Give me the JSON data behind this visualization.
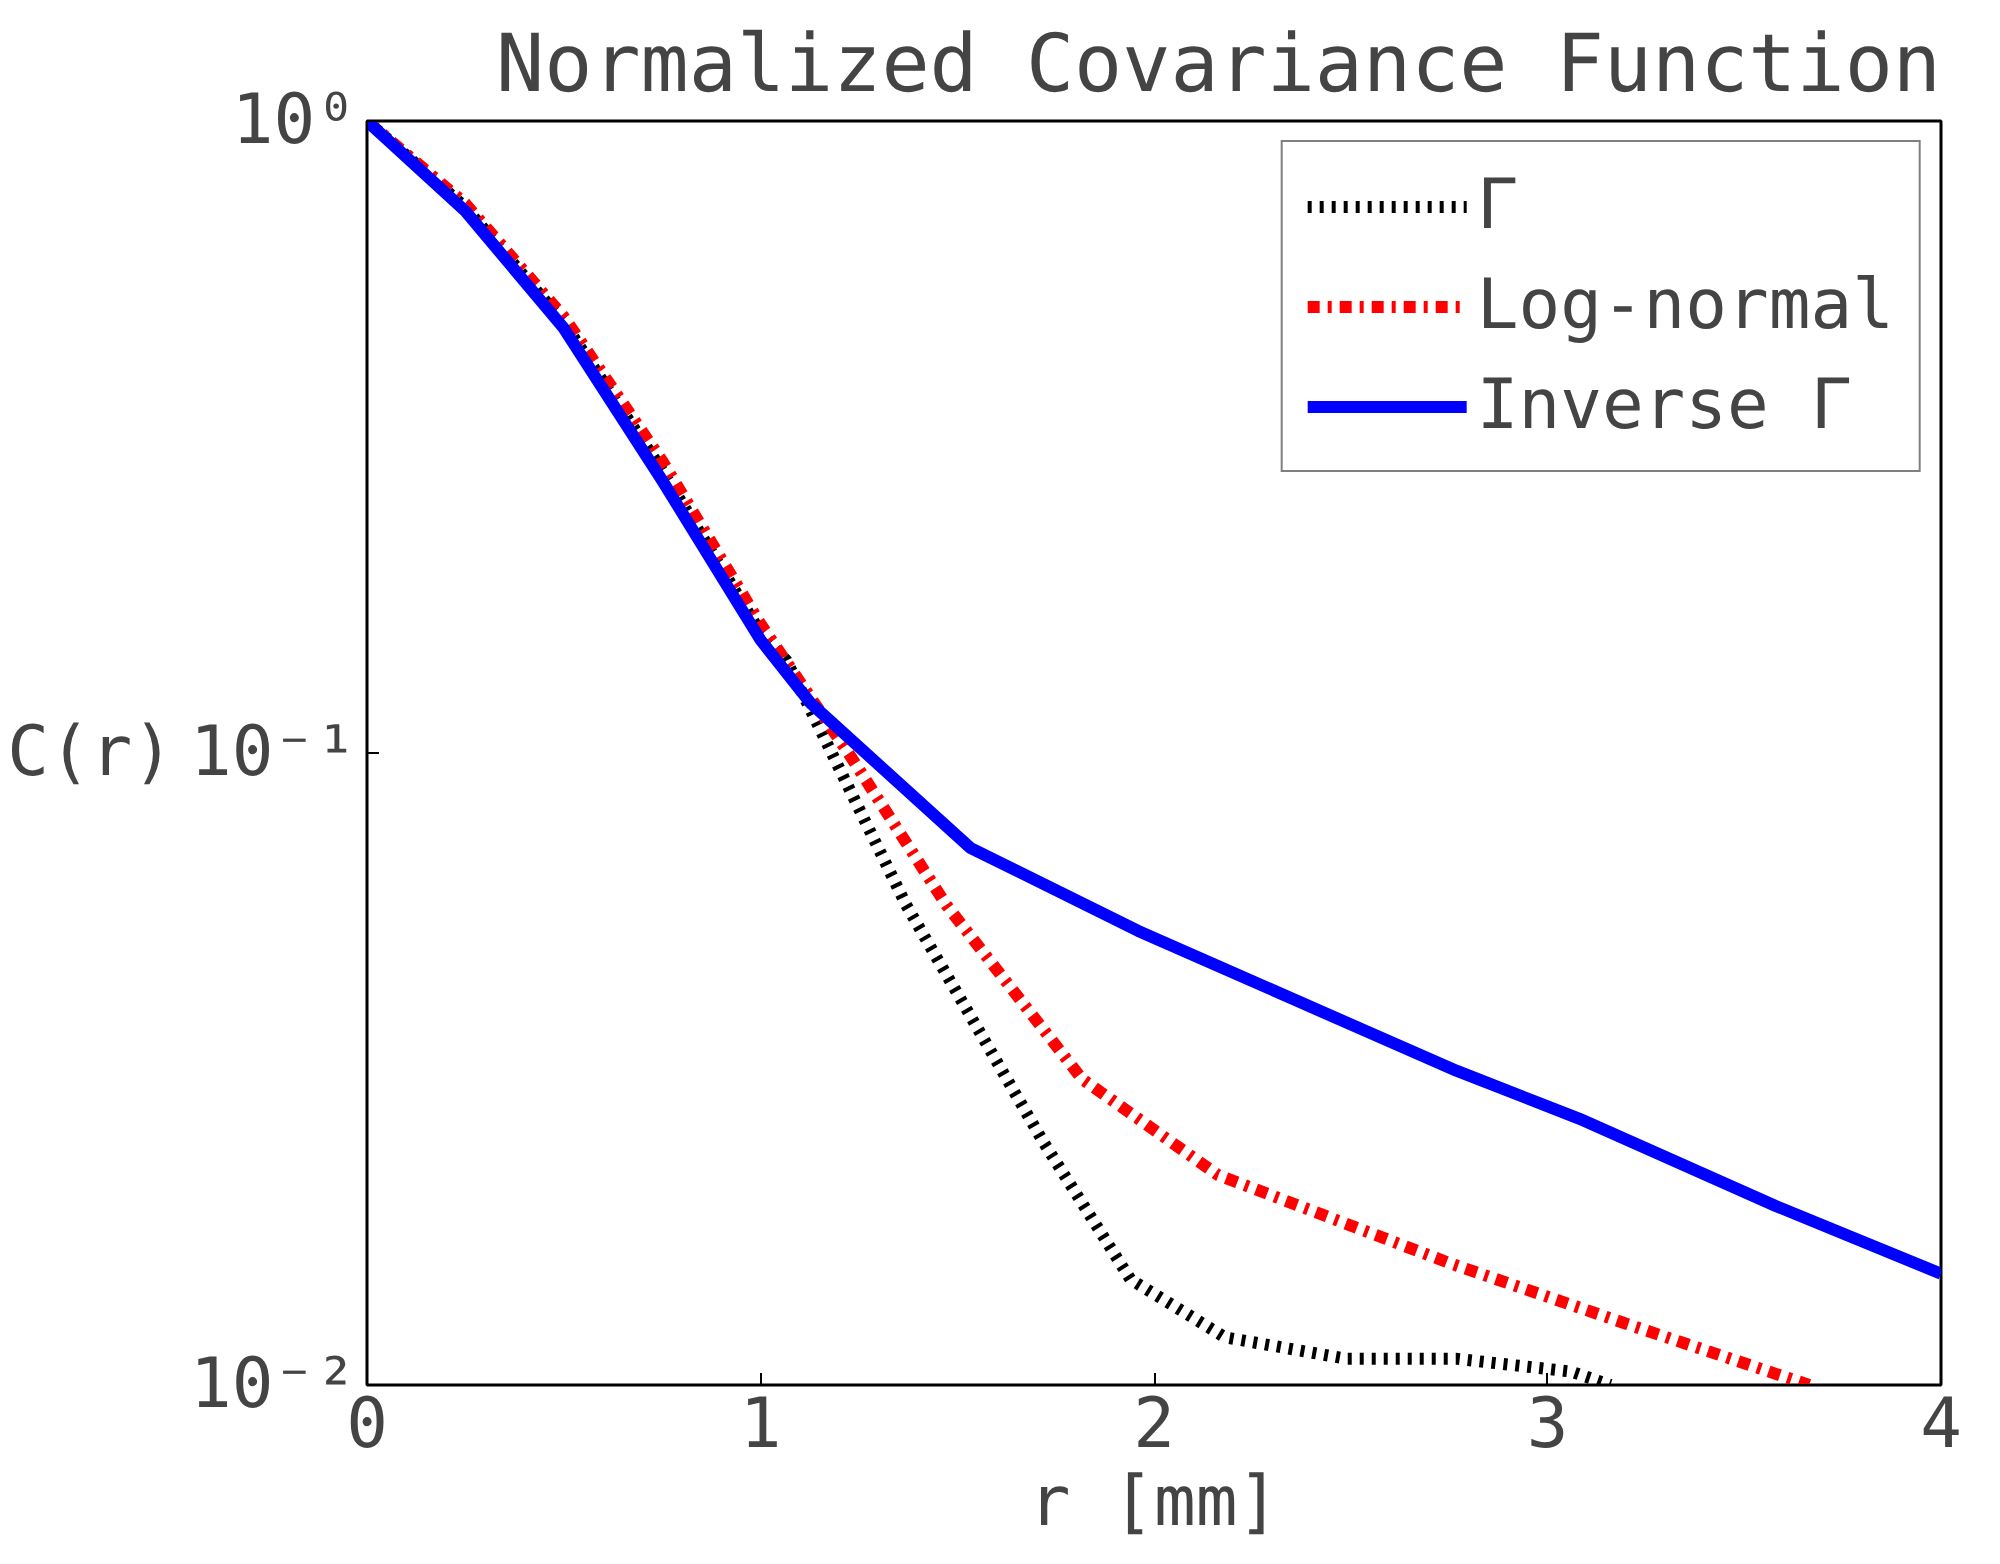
{
  "chart_data": {
    "type": "line",
    "title": "Normalized Covariance Function",
    "xlabel": "r [mm]",
    "ylabel": "C(r)",
    "log": "y",
    "xlim": [
      0,
      4
    ],
    "ylim": [
      0.01,
      1
    ],
    "xticks": [
      0,
      1,
      2,
      3,
      4
    ],
    "yticks": [
      {
        "value": 1,
        "label": "10⁰"
      },
      {
        "value": 0.1,
        "label": "10⁻¹"
      },
      {
        "value": 0.01,
        "label": "10⁻²"
      }
    ],
    "grid": false,
    "legend": "top right",
    "series": [
      {
        "name": "Γ",
        "color": "#000000",
        "line_style": "dotted",
        "x": [
          0,
          0.25,
          0.5,
          0.75,
          1.0,
          1.066,
          1.37,
          1.716,
          1.94,
          2.18,
          2.49,
          2.77,
          3.06,
          3.16
        ],
        "values": [
          1,
          0.73,
          0.48,
          0.28,
          0.155,
          0.14,
          0.0575,
          0.0244,
          0.0147,
          0.0119,
          0.011,
          0.011,
          0.0105,
          0.01
        ]
      },
      {
        "name": "Log-normal",
        "color": "#ff0000",
        "line_style": "dashdot",
        "x": [
          0,
          0.25,
          0.5,
          0.75,
          1.0,
          1.228,
          1.472,
          1.817,
          2.162,
          2.75,
          3.2,
          3.665
        ],
        "values": [
          1,
          0.74,
          0.49,
          0.29,
          0.16,
          0.099,
          0.0575,
          0.0305,
          0.0215,
          0.0156,
          0.0125,
          0.01
        ]
      },
      {
        "name": "Inverse Γ",
        "color": "#0000ff",
        "line_style": "solid",
        "x": [
          0,
          0.25,
          0.5,
          0.75,
          1.0,
          1.127,
          1.533,
          1.96,
          2.365,
          2.77,
          3.08,
          3.58,
          4.0
        ],
        "values": [
          1,
          0.72,
          0.47,
          0.27,
          0.151,
          0.12,
          0.0708,
          0.0523,
          0.0405,
          0.0314,
          0.0264,
          0.0192,
          0.015
        ]
      }
    ]
  }
}
